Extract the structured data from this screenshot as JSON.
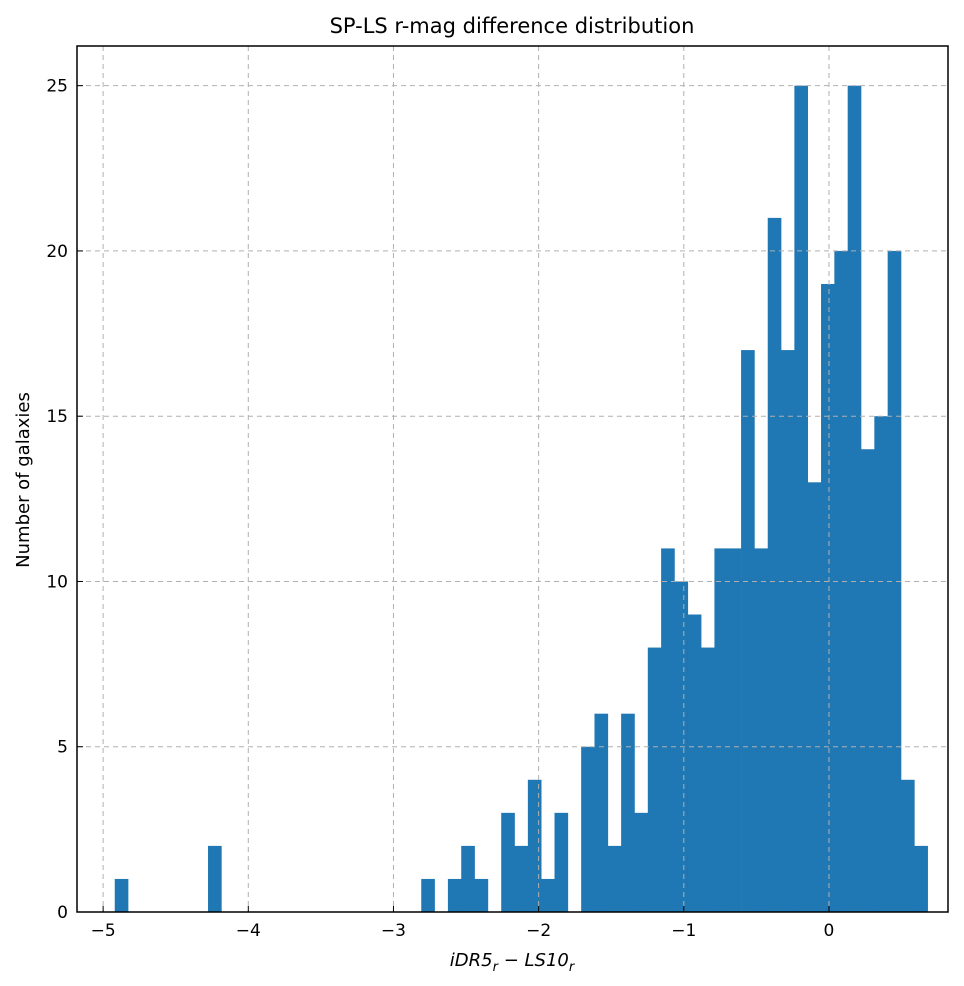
{
  "chart_data": {
    "type": "bar",
    "title": "SP-LS r-mag difference distribution",
    "xlabel": "iDR5r − LS10r",
    "xlabel_parts": {
      "a_base": "iDR5",
      "a_sub": "r",
      "minus": " − ",
      "b_base": "LS10",
      "b_sub": "r"
    },
    "ylabel": "Number of galaxies",
    "xlim": [
      -5.18,
      0.82
    ],
    "ylim": [
      0,
      26.2
    ],
    "bin_start": -4.92,
    "bin_width": 0.0918,
    "counts": [
      1,
      0,
      0,
      0,
      0,
      0,
      0,
      2,
      0,
      0,
      0,
      0,
      0,
      0,
      0,
      0,
      0,
      0,
      0,
      0,
      0,
      0,
      0,
      1,
      0,
      1,
      2,
      1,
      0,
      3,
      2,
      4,
      1,
      3,
      0,
      5,
      6,
      2,
      6,
      3,
      8,
      11,
      10,
      9,
      8,
      11,
      11,
      17,
      11,
      21,
      17,
      25,
      13,
      19,
      20,
      25,
      14,
      15,
      20,
      4,
      2
    ],
    "xticks": [
      -5,
      -4,
      -3,
      -2,
      -1,
      0
    ],
    "xtick_labels": [
      "−5",
      "−4",
      "−3",
      "−2",
      "−1",
      "0"
    ],
    "yticks": [
      0,
      5,
      10,
      15,
      20,
      25
    ],
    "ytick_labels": [
      "0",
      "5",
      "10",
      "15",
      "20",
      "25"
    ],
    "grid": true,
    "bar_color": "#1f77b4"
  }
}
